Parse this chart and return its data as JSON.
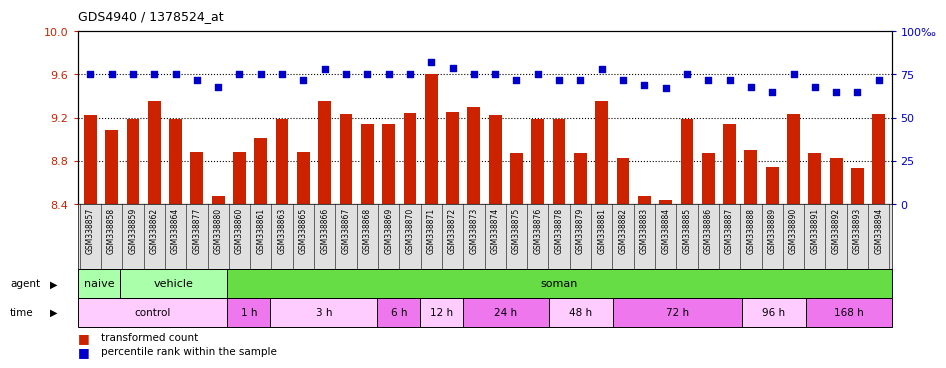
{
  "title": "GDS4940 / 1378524_at",
  "bar_color": "#cc2200",
  "dot_color": "#0000cc",
  "categories": [
    "GSM338857",
    "GSM338858",
    "GSM338859",
    "GSM338862",
    "GSM338864",
    "GSM338877",
    "GSM338880",
    "GSM338860",
    "GSM338861",
    "GSM338863",
    "GSM338865",
    "GSM338866",
    "GSM338867",
    "GSM338868",
    "GSM338869",
    "GSM338870",
    "GSM338871",
    "GSM338872",
    "GSM338873",
    "GSM338874",
    "GSM338875",
    "GSM338876",
    "GSM338878",
    "GSM338879",
    "GSM338881",
    "GSM338882",
    "GSM338883",
    "GSM338884",
    "GSM338885",
    "GSM338886",
    "GSM338887",
    "GSM338888",
    "GSM338889",
    "GSM338890",
    "GSM338891",
    "GSM338892",
    "GSM338893",
    "GSM338894"
  ],
  "bar_values": [
    9.22,
    9.09,
    9.19,
    9.35,
    9.19,
    8.88,
    8.47,
    8.88,
    9.01,
    9.19,
    8.88,
    9.35,
    9.23,
    9.14,
    9.14,
    9.24,
    9.6,
    9.25,
    9.3,
    9.22,
    8.87,
    9.19,
    9.19,
    8.87,
    9.35,
    8.83,
    8.47,
    8.44,
    9.19,
    8.87,
    9.14,
    8.9,
    8.74,
    9.23,
    8.87,
    8.83,
    8.73,
    9.23
  ],
  "dot_values": [
    75,
    75,
    75,
    75,
    75,
    72,
    68,
    75,
    75,
    75,
    72,
    78,
    75,
    75,
    75,
    75,
    82,
    79,
    75,
    75,
    72,
    75,
    72,
    72,
    78,
    72,
    69,
    67,
    75,
    72,
    72,
    68,
    65,
    75,
    68,
    65,
    65,
    72
  ],
  "ylim_left": [
    8.4,
    10.0
  ],
  "ylim_right": [
    0,
    100
  ],
  "yticks_left": [
    8.4,
    8.8,
    9.2,
    9.6,
    10.0
  ],
  "yticks_right": [
    0,
    25,
    50,
    75,
    100
  ],
  "ytick_labels_right": [
    "0",
    "25",
    "50",
    "75",
    "100‰"
  ],
  "bg_color": "#ffffff",
  "plot_bg_color": "#ffffff",
  "tick_area_color": "#e0e0e0",
  "tick_label_color_left": "#cc2200",
  "tick_label_color_right": "#0000cc",
  "agent_sections": [
    {
      "label": "naive",
      "color": "#aaffaa",
      "start": 0,
      "end": 2
    },
    {
      "label": "vehicle",
      "color": "#aaffaa",
      "start": 2,
      "end": 7
    },
    {
      "label": "soman",
      "color": "#66dd44",
      "start": 7,
      "end": 38
    }
  ],
  "time_sections": [
    {
      "label": "control",
      "color": "#ffccff",
      "start": 0,
      "end": 7
    },
    {
      "label": "1 h",
      "color": "#ee77ee",
      "start": 7,
      "end": 9
    },
    {
      "label": "3 h",
      "color": "#ffccff",
      "start": 9,
      "end": 14
    },
    {
      "label": "6 h",
      "color": "#ee77ee",
      "start": 14,
      "end": 16
    },
    {
      "label": "12 h",
      "color": "#ffccff",
      "start": 16,
      "end": 18
    },
    {
      "label": "24 h",
      "color": "#ee77ee",
      "start": 18,
      "end": 22
    },
    {
      "label": "48 h",
      "color": "#ffccff",
      "start": 22,
      "end": 25
    },
    {
      "label": "72 h",
      "color": "#ee77ee",
      "start": 25,
      "end": 31
    },
    {
      "label": "96 h",
      "color": "#ffccff",
      "start": 31,
      "end": 34
    },
    {
      "label": "168 h",
      "color": "#ee77ee",
      "start": 34,
      "end": 38
    }
  ]
}
